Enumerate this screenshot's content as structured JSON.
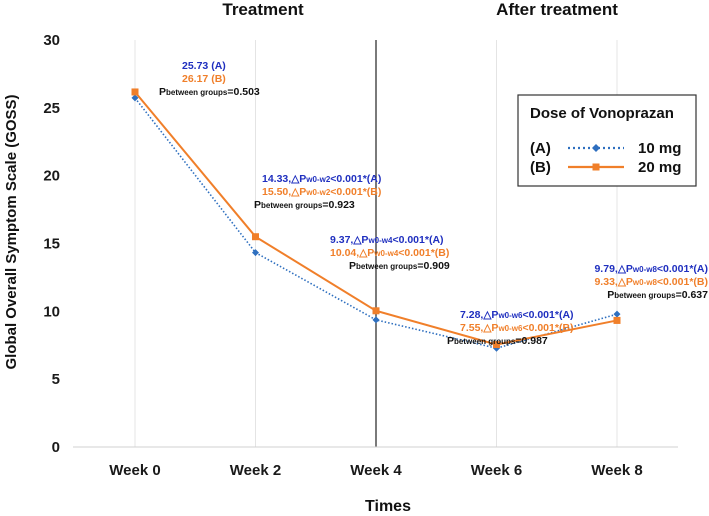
{
  "chart_data": {
    "type": "line",
    "title": "",
    "xlabel": "Times",
    "ylabel": "Global Overall Symptom Scale (GOSS)",
    "categories": [
      "Week 0",
      "Week 2",
      "Week 4",
      "Week 6",
      "Week 8"
    ],
    "ylim": [
      0,
      30
    ],
    "yticks": [
      0,
      5,
      10,
      15,
      20,
      25,
      30
    ],
    "grid": "vertical",
    "phases": [
      {
        "label": "Treatment"
      },
      {
        "label": "After treatment"
      }
    ],
    "divider_after": "Week 4",
    "legend": {
      "title": "Dose of Vonoprazan",
      "placement": "right",
      "entries": [
        {
          "tag": "(A)",
          "label": "10 mg"
        },
        {
          "tag": "(B)",
          "label": "20 mg"
        }
      ]
    },
    "series": [
      {
        "name": "10 mg",
        "tag": "(A)",
        "color": "#2e6fbf",
        "style": "dotted",
        "marker": "diamond",
        "values": [
          25.73,
          14.33,
          9.37,
          7.28,
          9.79
        ]
      },
      {
        "name": "20 mg",
        "tag": "(B)",
        "color": "#f07f2a",
        "style": "solid",
        "marker": "square",
        "values": [
          26.17,
          15.5,
          10.04,
          7.55,
          9.33
        ]
      }
    ],
    "annotations": [
      {
        "lines": [
          {
            "color": "#1f2fbf",
            "parts": [
              {
                "t": "25.73 (A)"
              }
            ]
          },
          {
            "color": "#f07f2a",
            "parts": [
              {
                "t": "26.17 (B)"
              }
            ]
          },
          {
            "color": "#111111",
            "parts": [
              {
                "t": "P"
              },
              {
                "t": "between groups",
                "sub": true
              },
              {
                "t": "=0.503"
              }
            ]
          }
        ]
      },
      {
        "lines": [
          {
            "color": "#1f2fbf",
            "parts": [
              {
                "t": "14.33,△P"
              },
              {
                "t": "w0-w2",
                "sub": true
              },
              {
                "t": "<0.001*(A)"
              }
            ]
          },
          {
            "color": "#f07f2a",
            "parts": [
              {
                "t": "15.50,△P"
              },
              {
                "t": "w0-w2",
                "sub": true
              },
              {
                "t": "<0.001*(B)"
              }
            ]
          },
          {
            "color": "#111111",
            "parts": [
              {
                "t": "P"
              },
              {
                "t": "between groups",
                "sub": true
              },
              {
                "t": "=0.923"
              }
            ]
          }
        ]
      },
      {
        "lines": [
          {
            "color": "#1f2fbf",
            "parts": [
              {
                "t": "9.37,△P"
              },
              {
                "t": "w0-w4",
                "sub": true
              },
              {
                "t": "<0.001*(A)"
              }
            ]
          },
          {
            "color": "#f07f2a",
            "parts": [
              {
                "t": "10.04,△P"
              },
              {
                "t": "w0-w4",
                "sub": true
              },
              {
                "t": "<0.001*(B)"
              }
            ]
          },
          {
            "color": "#111111",
            "parts": [
              {
                "t": "P"
              },
              {
                "t": "between groups",
                "sub": true
              },
              {
                "t": "=0.909"
              }
            ]
          }
        ]
      },
      {
        "lines": [
          {
            "color": "#1f2fbf",
            "parts": [
              {
                "t": "7.28,△P"
              },
              {
                "t": "w0-w6",
                "sub": true
              },
              {
                "t": "<0.001*(A)"
              }
            ]
          },
          {
            "color": "#f07f2a",
            "parts": [
              {
                "t": "7.55,△P"
              },
              {
                "t": "w0-w6",
                "sub": true
              },
              {
                "t": "<0.001*(B)"
              }
            ]
          },
          {
            "color": "#111111",
            "parts": [
              {
                "t": "P"
              },
              {
                "t": "between groups",
                "sub": true
              },
              {
                "t": "=0.987"
              }
            ]
          }
        ]
      },
      {
        "lines": [
          {
            "color": "#1f2fbf",
            "parts": [
              {
                "t": "9.79,△P"
              },
              {
                "t": "w0-w8",
                "sub": true
              },
              {
                "t": "<0.001*(A)"
              }
            ]
          },
          {
            "color": "#f07f2a",
            "parts": [
              {
                "t": "9.33,△P"
              },
              {
                "t": "w0-w8",
                "sub": true
              },
              {
                "t": "<0.001*(B)"
              }
            ]
          },
          {
            "color": "#111111",
            "parts": [
              {
                "t": "P"
              },
              {
                "t": "between groups",
                "sub": true
              },
              {
                "t": "=0.637"
              }
            ]
          }
        ]
      }
    ]
  }
}
